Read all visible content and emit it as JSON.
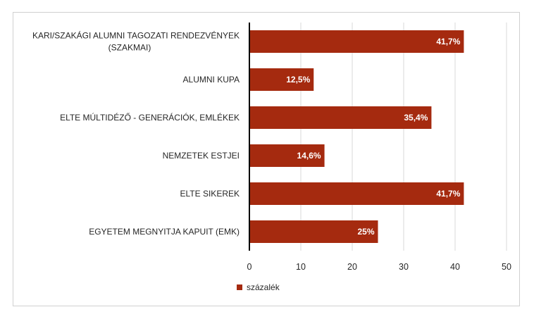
{
  "chart_data": {
    "type": "bar",
    "orientation": "horizontal",
    "categories": [
      [
        "KARI/SZAKÁGI ALUMNI TAGOZATI RENDEZVÉNYEK",
        "(SZAKMAI)"
      ],
      [
        "ALUMNI KUPA"
      ],
      [
        "ELTE MÚLTIDÉZŐ - GENERÁCIÓK, EMLÉKEK"
      ],
      [
        "NEMZETEK ESTJEI"
      ],
      [
        "ELTE SIKEREK"
      ],
      [
        "EGYETEM MEGNYITJA KAPUIT (EMK)"
      ]
    ],
    "series": [
      {
        "name": "százalék",
        "values": [
          41.7,
          12.5,
          35.4,
          14.6,
          41.7,
          25
        ],
        "labels": [
          "41,7%",
          "12,5%",
          "35,4%",
          "14,6%",
          "41,7%",
          "25%"
        ],
        "color": "#a52a0f"
      }
    ],
    "xlim": [
      0,
      50
    ],
    "xticks": [
      0,
      10,
      20,
      30,
      40,
      50
    ],
    "grid": true,
    "legend": "bottom-left"
  }
}
